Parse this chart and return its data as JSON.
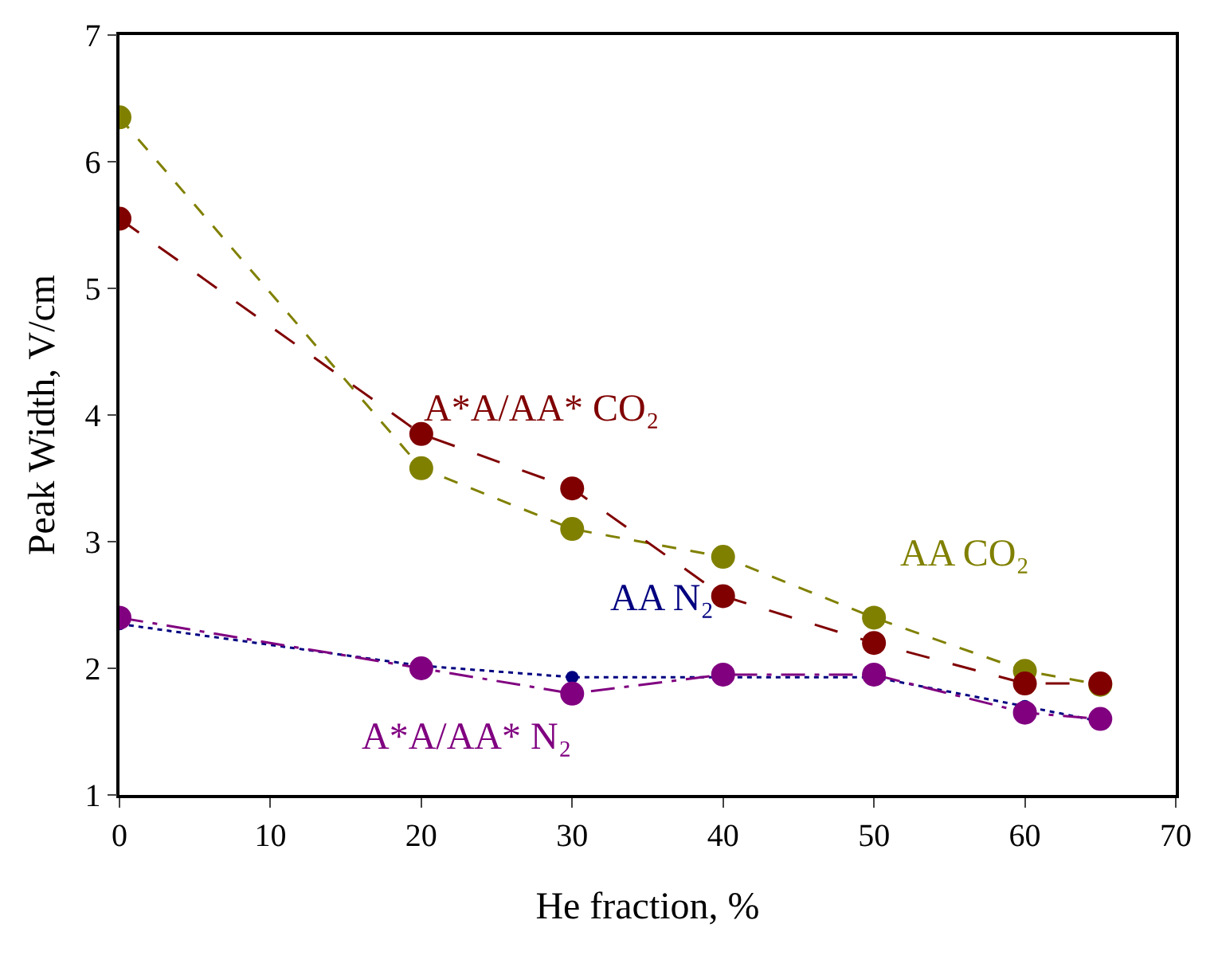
{
  "chart_data": {
    "type": "line",
    "xlabel": "He fraction, %",
    "ylabel": "Peak Width, V/cm",
    "x": [
      0,
      20,
      30,
      40,
      50,
      60,
      65
    ],
    "series": [
      {
        "name": "AA N₂",
        "color": "#000080",
        "line_style": "dotted",
        "values": [
          2.35,
          2.02,
          1.93,
          1.93,
          1.93,
          1.7,
          1.58
        ]
      },
      {
        "name": "A*A/AA* N₂",
        "color": "#800080",
        "line_style": "dashed",
        "values": [
          2.4,
          2.0,
          1.8,
          1.95,
          1.95,
          1.65,
          1.6
        ]
      },
      {
        "name": "AA CO₂",
        "color": "#808000",
        "line_style": "dashed",
        "values": [
          6.35,
          3.58,
          3.1,
          2.88,
          2.4,
          1.98,
          1.87
        ]
      },
      {
        "name": "A*A/AA* CO₂",
        "color": "#800000",
        "line_style": "dashed",
        "values": [
          5.55,
          3.85,
          3.42,
          2.57,
          2.2,
          1.88,
          1.88
        ]
      }
    ],
    "xlim": [
      0,
      70
    ],
    "xticks": [
      0,
      10,
      20,
      30,
      40,
      50,
      60,
      70
    ],
    "ylim": [
      1,
      7
    ],
    "yticks": [
      1,
      2,
      3,
      4,
      5,
      6,
      7
    ],
    "grid": false,
    "legend": false,
    "marker": "circle"
  }
}
